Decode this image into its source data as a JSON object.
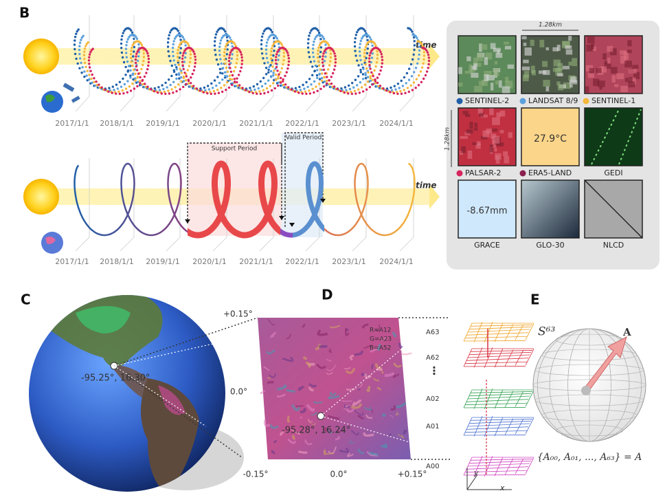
{
  "panel_b": {
    "label": "B",
    "time_top": "time",
    "time_bottom": "time",
    "dates_top": [
      "2017/1/1",
      "2018/1/1",
      "2019/1/1",
      "2020/1/1",
      "2021/1/1",
      "2022/1/1",
      "2023/1/1",
      "2024/1/1"
    ],
    "dates_bottom": [
      "2017/1/1",
      "2018/1/1",
      "2019/1/1",
      "2020/1/1",
      "2021/1/1",
      "2022/1/1",
      "2023/1/1",
      "2024/1/1"
    ],
    "support_period": "Support Period",
    "valid_period": "Valid Period",
    "scale_h": "1.28km",
    "scale_v": "1.28km",
    "tiles": [
      {
        "name": "SENTINEL-2",
        "dot": "#1f5fa8"
      },
      {
        "name": "LANDSAT 8/9",
        "dot": "#5aa0dc"
      },
      {
        "name": "SENTINEL-1",
        "dot": "#f5b73b"
      },
      {
        "name": "PALSAR-2",
        "dot": "#d6245e"
      },
      {
        "name": "ERA5-LAND",
        "dot": "#8a2050"
      },
      {
        "name": "GEDI"
      },
      {
        "name": "GRACE"
      },
      {
        "name": "GLO-30"
      },
      {
        "name": "NLCD"
      }
    ],
    "era5_value": "27.9°C",
    "grace_value": "-8.67mm"
  },
  "panel_c": {
    "label": "C",
    "coord": "-95.25°, 16.30°"
  },
  "panel_d": {
    "label": "D",
    "lat_top": "+0.15°",
    "lat_mid": "0.0°",
    "lon_left": "-0.15°",
    "lon_mid": "0.0°",
    "lon_right": "+0.15°",
    "rgb": [
      "R=A12",
      "G=A23",
      "B=A52"
    ],
    "coord": "-95.28°, 16.24°",
    "layers": [
      "A63",
      "A62",
      "A02",
      "A01",
      "A00"
    ],
    "ellipsis": "⋮",
    "axis_x": "x",
    "axis_y": "y"
  },
  "panel_e": {
    "label": "E",
    "sphere": "S⁶³",
    "vector": "A",
    "equation": "{A₀₀, A₀₁, ..., A₆₃} = A"
  }
}
